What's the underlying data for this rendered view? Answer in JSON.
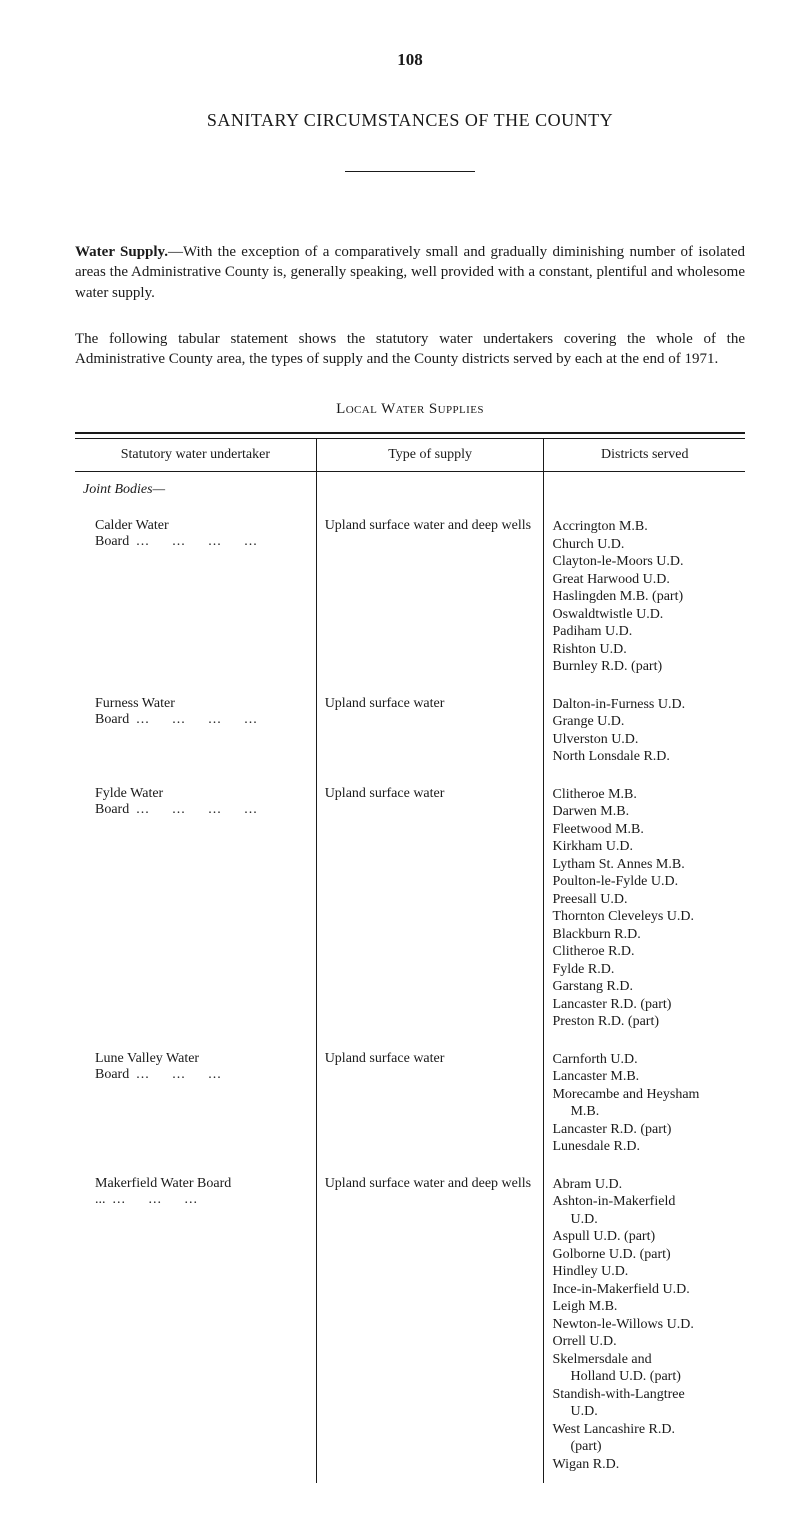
{
  "page_number": "108",
  "section_title": "SANITARY CIRCUMSTANCES OF THE COUNTY",
  "paragraph1_lead": "Water Supply.",
  "paragraph1_body": "—With the exception of a comparatively small and gradually diminishing number of isolated areas the Administrative County is, generally speaking, well provided with a constant, plentiful and wholesome water supply.",
  "paragraph2": "The following tabular statement shows the statutory water undertakers covering the whole of the Administrative County area, the types of supply and the County districts served by each at the end of 1971.",
  "table_title_prefix": "L",
  "table_title_rest": "ocal Water Supplies",
  "columns": {
    "c1": "Statutory water undertaker",
    "c2": "Type of supply",
    "c3": "Districts served"
  },
  "subheading": "Joint Bodies—",
  "rows": [
    {
      "undertaker": "Calder Water Board",
      "leader": "...     ...     ...     ...",
      "supply": "Upland surface water and deep wells",
      "districts": [
        "Accrington M.B.",
        "Church U.D.",
        "Clayton-le-Moors U.D.",
        "Great Harwood U.D.",
        "Haslingden M.B. (part)",
        "Oswaldtwistle U.D.",
        "Padiham U.D.",
        "Rishton U.D.",
        "Burnley R.D. (part)"
      ]
    },
    {
      "undertaker": "Furness Water Board",
      "leader": "...     ...     ...     ...",
      "supply": "Upland surface water",
      "districts": [
        "Dalton-in-Furness U.D.",
        "Grange U.D.",
        "Ulverston U.D.",
        "North Lonsdale R.D."
      ]
    },
    {
      "undertaker": "Fylde Water Board",
      "leader": "...     ...     ...     ...",
      "supply": "Upland surface water",
      "districts": [
        "Clitheroe M.B.",
        "Darwen M.B.",
        "Fleetwood M.B.",
        "Kirkham U.D.",
        "Lytham St. Annes M.B.",
        "Poulton-le-Fylde U.D.",
        "Preesall U.D.",
        "Thornton Cleveleys U.D.",
        "Blackburn R.D.",
        "Clitheroe R.D.",
        "Fylde R.D.",
        "Garstang R.D.",
        "Lancaster R.D. (part)",
        "Preston R.D. (part)"
      ]
    },
    {
      "undertaker": "Lune Valley Water Board",
      "leader": "...     ...     ...",
      "supply": "Upland surface water",
      "districts": [
        "Carnforth U.D.",
        "Lancaster M.B.",
        "Morecambe and Heysham",
        "  M.B.",
        "Lancaster R.D. (part)",
        "Lunesdale R.D."
      ]
    },
    {
      "undertaker": "Makerfield Water Board ...",
      "leader": "...     ...     ...",
      "supply": "Upland surface water and deep wells",
      "districts": [
        "Abram U.D.",
        "Ashton-in-Makerfield",
        "  U.D.",
        "Aspull U.D. (part)",
        "Golborne U.D. (part)",
        "Hindley U.D.",
        "Ince-in-Makerfield U.D.",
        "Leigh M.B.",
        "Newton-le-Willows U.D.",
        "Orrell U.D.",
        "Skelmersdale and",
        "  Holland U.D. (part)",
        "Standish-with-Langtree",
        "  U.D.",
        "West Lancashire R.D.",
        "  (part)",
        "Wigan R.D."
      ]
    }
  ]
}
